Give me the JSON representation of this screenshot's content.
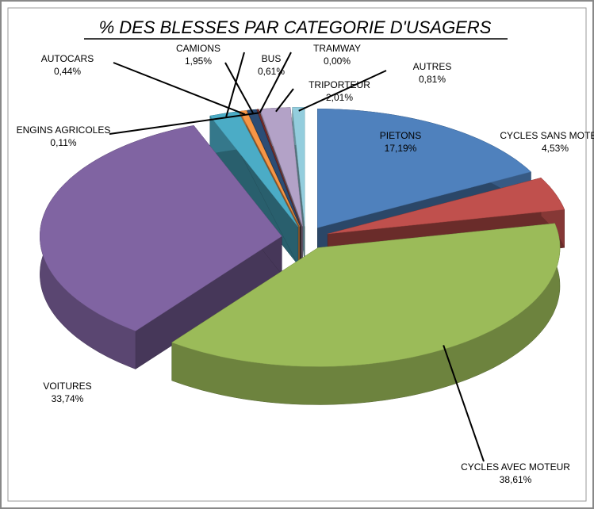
{
  "chart_data": {
    "type": "pie3d",
    "title": "% DES BLESSES PAR CATEGORIE D'USAGERS",
    "categories": [
      "PIETONS",
      "CYCLES SANS MOTEUR",
      "CYCLES AVEC MOTEUR",
      "VOITURES",
      "CAMIONS",
      "AUTOCARS",
      "BUS",
      "ENGINS AGRICOLES",
      "TRAMWAY",
      "TRIPORTEUR",
      "AUTRES"
    ],
    "values": [
      17.19,
      4.53,
      38.61,
      33.74,
      1.95,
      0.44,
      0.61,
      0.11,
      0.0,
      2.01,
      0.81
    ],
    "value_labels": [
      "17,19%",
      "4,53%",
      "38,61%",
      "33,74%",
      "1,95%",
      "0,44%",
      "0,61%",
      "0,11%",
      "0,00%",
      "2,01%",
      "0,81%"
    ],
    "colors": [
      "#4f81bd",
      "#c0504d",
      "#9bbb59",
      "#8064a2",
      "#4bacc6",
      "#f79646",
      "#2c4d75",
      "#772c2a",
      "#5f7530",
      "#b3a2c7",
      "#93cddd"
    ]
  }
}
